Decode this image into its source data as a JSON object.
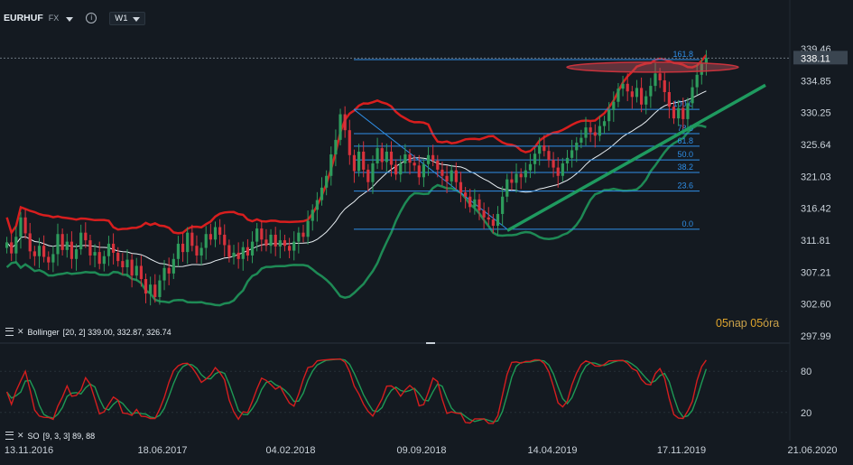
{
  "header": {
    "symbol": "EURHUF",
    "market": "FX",
    "timeframe": "W1",
    "info_icon": "info-icon"
  },
  "indicators": {
    "bollinger_label": "Bollinger",
    "bollinger_params": "[20, 2] 339.00, 332.87, 326.74",
    "so_label": "SO",
    "so_params": "[9, 3, 3] 89, 88"
  },
  "countdown": {
    "days": "05",
    "days_unit": "nap",
    "hours": "05",
    "hours_unit": "óra"
  },
  "colors": {
    "background": "#141a21",
    "up_candle": "#2e9c5c",
    "down_candle": "#d8323c",
    "upper_band": "#d81e1e",
    "lower_band": "#1e8a55",
    "middle_band": "#e8eef2",
    "fib_line": "#2f8fe8",
    "trendline": "#1f9a5f",
    "so_k": "#d41e1e",
    "so_d": "#1e9a55"
  },
  "chart_data": {
    "type": "candlestick",
    "symbol": "EURHUF",
    "last_price": "338.11",
    "y_ticks": [
      "339.46",
      "334.85",
      "330.25",
      "325.64",
      "321.03",
      "316.42",
      "311.81",
      "307.21",
      "302.60",
      "297.99"
    ],
    "ylim": [
      297.99,
      339.46
    ],
    "x_ticks": [
      "13.11.2016",
      "18.06.2017",
      "04.02.2018",
      "09.09.2018",
      "14.04.2019",
      "17.11.2019",
      "21.06.2020"
    ],
    "fibonacci": {
      "levels": [
        "161.8",
        "100.0",
        "78.6",
        "61.8",
        "50.0",
        "38.2",
        "23.6",
        "0.0"
      ],
      "prices": [
        337.9,
        330.7,
        327.2,
        325.4,
        323.4,
        321.6,
        318.9,
        313.4
      ],
      "high": 330.7,
      "low": 313.4
    },
    "closes": [
      311.5,
      309.9,
      312.3,
      315.1,
      312.8,
      310.2,
      309.5,
      311.0,
      309.4,
      308.6,
      309.8,
      312.7,
      310.4,
      311.6,
      309.1,
      310.5,
      312.9,
      311.8,
      309.6,
      310.1,
      308.4,
      309.5,
      311.3,
      310.0,
      308.8,
      307.9,
      309.0,
      306.7,
      308.1,
      306.2,
      304.1,
      305.4,
      303.6,
      306.0,
      307.8,
      307.0,
      309.1,
      311.3,
      310.1,
      312.9,
      311.0,
      309.6,
      310.7,
      312.7,
      311.9,
      313.7,
      312.6,
      311.1,
      309.4,
      310.0,
      309.1,
      310.8,
      309.6,
      311.6,
      313.5,
      311.9,
      311.0,
      312.6,
      310.9,
      311.8,
      311.0,
      310.3,
      311.6,
      312.9,
      312.3,
      314.6,
      316.2,
      317.6,
      319.4,
      321.1,
      324.2,
      326.3,
      330.0,
      327.7,
      324.1,
      321.8,
      324.6,
      322.0,
      320.2,
      322.9,
      325.1,
      323.1,
      324.6,
      322.7,
      321.3,
      322.9,
      324.2,
      323.0,
      322.6,
      320.9,
      322.8,
      324.1,
      323.3,
      322.0,
      321.1,
      320.3,
      321.9,
      320.2,
      318.7,
      318.1,
      316.6,
      317.7,
      316.1,
      315.1,
      314.8,
      313.9,
      315.6,
      318.1,
      320.6,
      320.1,
      321.4,
      320.9,
      321.9,
      322.8,
      324.3,
      325.5,
      324.7,
      323.4,
      322.3,
      321.1,
      322.9,
      323.7,
      324.8,
      325.9,
      326.6,
      328.1,
      327.4,
      326.9,
      328.3,
      329.0,
      330.6,
      331.8,
      333.7,
      334.4,
      333.3,
      332.5,
      333.8,
      331.4,
      332.6,
      334.1,
      335.9,
      334.9,
      333.2,
      331.1,
      329.4,
      330.9,
      329.3,
      331.6,
      333.9,
      335.7,
      337.3,
      338.11
    ],
    "bollinger": {
      "period": 20,
      "stddev": 2,
      "upper": 339.0,
      "middle": 332.87,
      "lower": 326.74
    },
    "stochastic": {
      "params": [
        9,
        3,
        3
      ],
      "k": 89,
      "d": 88,
      "levels": [
        80,
        20
      ]
    }
  }
}
